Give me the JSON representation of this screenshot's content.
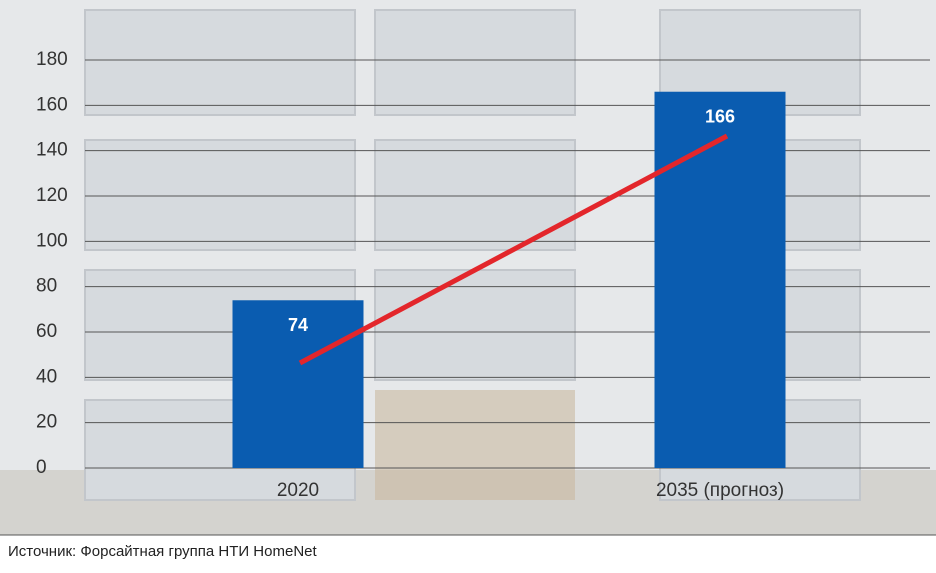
{
  "chart_data": {
    "type": "bar",
    "categories": [
      "2020",
      "2035 (прогноз)"
    ],
    "values": [
      74,
      166
    ],
    "color": "#0a5cb0",
    "ylim": [
      0,
      180
    ],
    "yticks": [
      0,
      20,
      40,
      60,
      80,
      100,
      120,
      140,
      160,
      180
    ],
    "grid": true,
    "source": "Источник: Форсайтная группа НТИ HomeNet"
  }
}
